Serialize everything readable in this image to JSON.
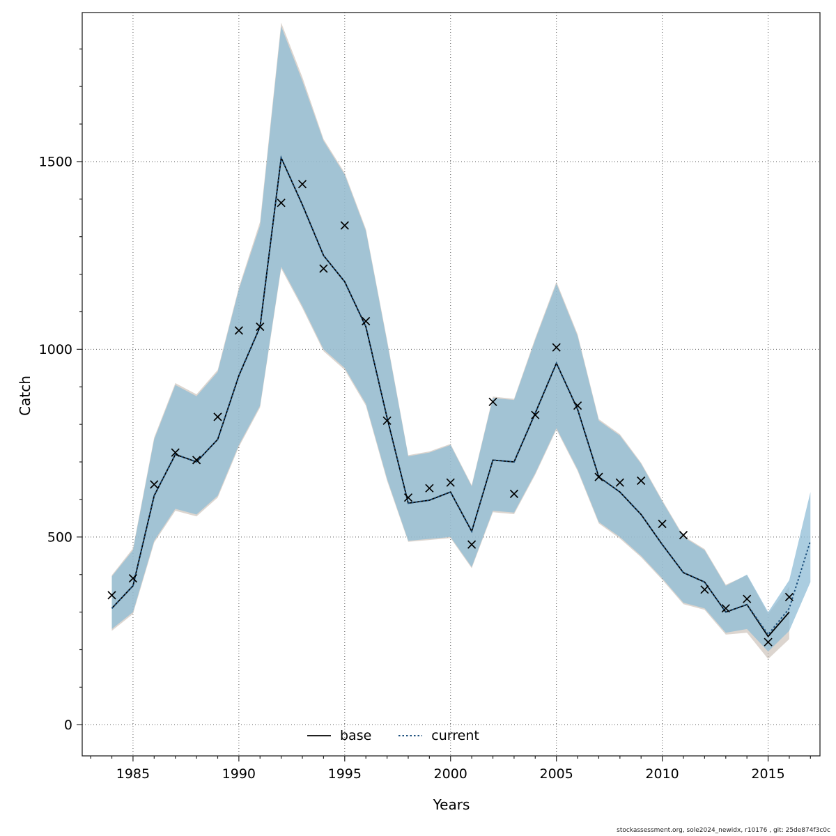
{
  "figure": {
    "footer": "stockassessment.org, sole2024_newidx, r10176 , git: 25de874f3c0c"
  },
  "chart_data": {
    "type": "line",
    "title": "",
    "xlabel": "Years",
    "ylabel": "Catch",
    "xlim": [
      1982.6,
      2017.45
    ],
    "ylim": [
      -83,
      1897
    ],
    "xticks": [
      1985,
      1990,
      1995,
      2000,
      2005,
      2010,
      2015
    ],
    "yticks": [
      0,
      500,
      1000,
      1500
    ],
    "x_minor_step": 1,
    "y_minor_step": 100,
    "grid": true,
    "legend": [
      {
        "label": "base",
        "line_style": "solid",
        "color": "#000000"
      },
      {
        "label": "current",
        "line_style": "dotted",
        "color": "#1c4f7c"
      }
    ],
    "colors": {
      "band_current": "#8fbcd6",
      "band_base": "#c0b2a8",
      "current_line": "#1c4f7c",
      "base_line": "#000000",
      "marker": "#000000"
    },
    "series": [
      {
        "name": "observed_catch",
        "marker": "x",
        "years": [
          1984,
          1985,
          1986,
          1987,
          1988,
          1989,
          1990,
          1991,
          1992,
          1993,
          1994,
          1995,
          1996,
          1997,
          1998,
          1999,
          2000,
          2001,
          2002,
          2003,
          2004,
          2005,
          2006,
          2007,
          2008,
          2009,
          2010,
          2011,
          2012,
          2013,
          2014,
          2015,
          2016
        ],
        "values": [
          345,
          390,
          640,
          725,
          705,
          820,
          1050,
          1060,
          1390,
          1440,
          1215,
          1330,
          1075,
          810,
          605,
          630,
          645,
          480,
          860,
          615,
          825,
          1005,
          850,
          660,
          645,
          650,
          535,
          505,
          360,
          310,
          335,
          220,
          340
        ]
      },
      {
        "name": "current",
        "years": [
          1984,
          1985,
          1986,
          1987,
          1988,
          1989,
          1990,
          1991,
          1992,
          1993,
          1994,
          1995,
          1996,
          1997,
          1998,
          1999,
          2000,
          2001,
          2002,
          2003,
          2004,
          2005,
          2006,
          2007,
          2008,
          2009,
          2010,
          2011,
          2012,
          2013,
          2014,
          2015,
          2016,
          2017
        ],
        "values": [
          310,
          370,
          610,
          720,
          700,
          760,
          930,
          1060,
          1510,
          1385,
          1250,
          1180,
          1060,
          818,
          590,
          598,
          620,
          515,
          705,
          700,
          830,
          963,
          840,
          660,
          620,
          560,
          480,
          405,
          380,
          300,
          320,
          240,
          310,
          490
        ],
        "lower": [
          255,
          300,
          490,
          575,
          560,
          610,
          745,
          850,
          1220,
          1115,
          1000,
          950,
          855,
          655,
          490,
          495,
          500,
          420,
          570,
          565,
          670,
          790,
          680,
          540,
          500,
          450,
          390,
          325,
          310,
          245,
          255,
          195,
          250,
          380
        ],
        "upper": [
          395,
          465,
          760,
          905,
          875,
          940,
          1160,
          1330,
          1860,
          1715,
          1555,
          1465,
          1315,
          1020,
          715,
          725,
          745,
          635,
          870,
          865,
          1025,
          1175,
          1035,
          810,
          770,
          695,
          595,
          500,
          465,
          370,
          400,
          300,
          385,
          620
        ]
      },
      {
        "name": "base",
        "years": [
          1984,
          1985,
          1986,
          1987,
          1988,
          1989,
          1990,
          1991,
          1992,
          1993,
          1994,
          1995,
          1996,
          1997,
          1998,
          1999,
          2000,
          2001,
          2002,
          2003,
          2004,
          2005,
          2006,
          2007,
          2008,
          2009,
          2010,
          2011,
          2012,
          2013,
          2014,
          2015,
          2016
        ],
        "values": [
          310,
          370,
          610,
          720,
          700,
          760,
          930,
          1060,
          1510,
          1385,
          1250,
          1180,
          1060,
          818,
          590,
          598,
          620,
          515,
          705,
          700,
          830,
          963,
          840,
          660,
          620,
          560,
          480,
          405,
          380,
          300,
          320,
          235,
          300
        ],
        "lower": [
          250,
          295,
          485,
          570,
          555,
          605,
          740,
          845,
          1215,
          1110,
          995,
          945,
          850,
          650,
          487,
          492,
          497,
          417,
          566,
          561,
          666,
          786,
          676,
          536,
          496,
          446,
          386,
          321,
          306,
          240,
          245,
          175,
          228
        ],
        "upper": [
          398,
          470,
          765,
          910,
          880,
          945,
          1165,
          1340,
          1870,
          1725,
          1560,
          1470,
          1320,
          1025,
          718,
          728,
          748,
          638,
          874,
          868,
          1030,
          1180,
          1040,
          814,
          774,
          698,
          598,
          503,
          468,
          373,
          398,
          295,
          368
        ]
      }
    ]
  }
}
